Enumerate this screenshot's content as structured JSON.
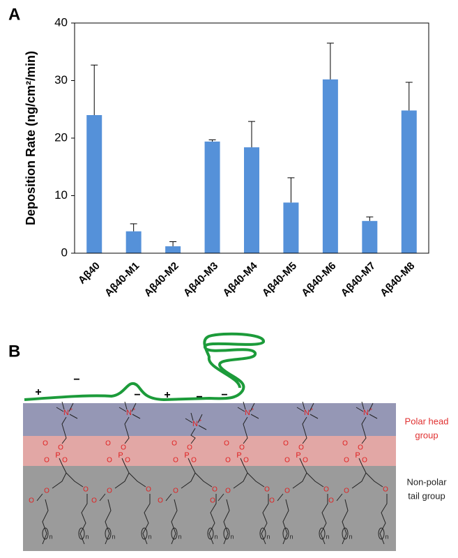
{
  "panel_labels": [
    "A",
    "B"
  ],
  "chart_data": {
    "type": "bar",
    "y_label": "Deposition Rate (ng/cm²/min)",
    "categories": [
      "Aβ40",
      "Aβ40-M1",
      "Aβ40-M2",
      "Aβ40-M3",
      "Aβ40-M4",
      "Aβ40-M5",
      "Aβ40-M6",
      "Aβ40-M7",
      "Aβ40-M8"
    ],
    "values": [
      24,
      3.8,
      1.2,
      19.4,
      18.4,
      8.8,
      30.2,
      5.6,
      24.8
    ],
    "errors": [
      8.7,
      1.3,
      0.8,
      0.3,
      4.5,
      4.3,
      6.3,
      0.7,
      4.9
    ],
    "color": "#5591d9",
    "ylim": [
      0,
      40
    ],
    "yticks": [
      0,
      10,
      20,
      30,
      40
    ],
    "grid": false
  },
  "diagram": {
    "charges": [
      {
        "label": "+"
      },
      {
        "label": "−"
      },
      {
        "label": "−"
      },
      {
        "label": "+"
      },
      {
        "label": "−"
      },
      {
        "label": "−"
      }
    ],
    "layers": [
      {
        "label_lines": [
          "Polar head",
          "group"
        ]
      },
      {
        "label_lines": [
          "Non-polar",
          "tail group"
        ]
      }
    ],
    "atoms": {
      "nitrogen": "N",
      "charge": "+",
      "phosphorus": "P",
      "oxygen": "O",
      "repeat": "n"
    }
  }
}
